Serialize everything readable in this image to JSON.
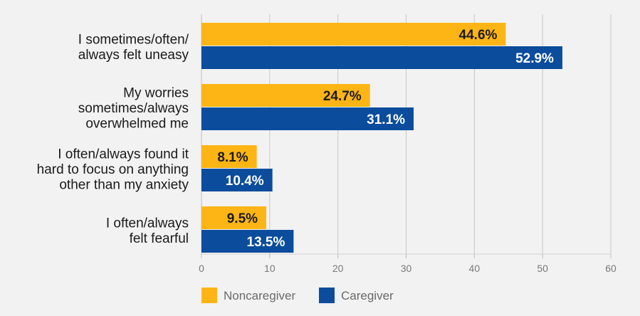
{
  "chart_data": {
    "type": "bar",
    "orientation": "horizontal",
    "categories": [
      [
        "I sometimes/often/",
        "always felt uneasy"
      ],
      [
        "My worries",
        "sometimes/always",
        "overwhelmed me"
      ],
      [
        "I often/always found it",
        "hard to focus on anything",
        "other than my anxiety"
      ],
      [
        "I often/always",
        "felt fearful"
      ]
    ],
    "series": [
      {
        "name": "Noncaregiver",
        "color": "#fdb515",
        "label_color": "#1a1a1a",
        "values": [
          44.6,
          24.7,
          8.1,
          9.5
        ],
        "labels": [
          "44.6%",
          "24.7%",
          "8.1%",
          "9.5%"
        ]
      },
      {
        "name": "Caregiver",
        "color": "#0b4c9c",
        "label_color": "#ffffff",
        "values": [
          52.9,
          31.1,
          10.4,
          13.5
        ],
        "labels": [
          "52.9%",
          "31.1%",
          "10.4%",
          "13.5%"
        ]
      }
    ],
    "xlim": [
      0,
      60
    ],
    "xticks": [
      0,
      10,
      20,
      30,
      40,
      50,
      60
    ],
    "grid": true,
    "grid_color": "#c8c8c8",
    "legend_position": "bottom-left",
    "title": "",
    "xlabel": "",
    "ylabel": ""
  }
}
